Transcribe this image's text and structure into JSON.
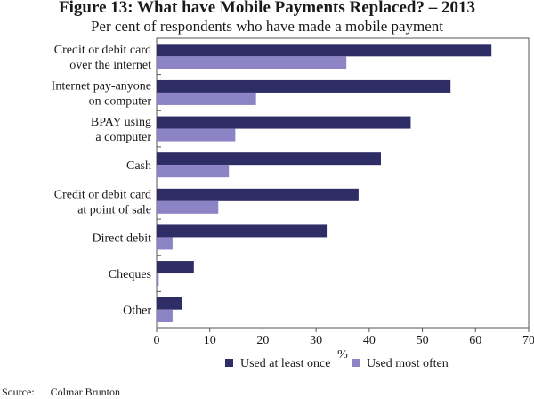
{
  "chart_data": {
    "type": "bar",
    "orientation": "horizontal",
    "title": "Figure 13: What have Mobile Payments Replaced? – 2013",
    "subtitle": "Per cent of respondents who have made a mobile payment",
    "xlabel": "%",
    "xlim": [
      0,
      70
    ],
    "xticks": [
      0,
      10,
      20,
      30,
      40,
      50,
      60,
      70
    ],
    "grid": false,
    "legend_position": "bottom",
    "categories": [
      [
        "Credit or debit card",
        "over the internet"
      ],
      [
        "Internet pay-anyone",
        "on computer"
      ],
      [
        "BPAY using",
        "a computer"
      ],
      [
        "Cash"
      ],
      [
        "Credit or debit card",
        "at point of sale"
      ],
      [
        "Direct debit"
      ],
      [
        "Cheques"
      ],
      [
        "Other"
      ]
    ],
    "series": [
      {
        "name": "Used at least once",
        "color": "#2e2d66",
        "values": [
          63,
          55.3,
          47.8,
          42.2,
          38,
          32,
          7,
          4.7
        ]
      },
      {
        "name": "Used most often",
        "color": "#8d84c6",
        "values": [
          35.7,
          18.7,
          14.8,
          13.6,
          11.6,
          3,
          0.4,
          3
        ]
      }
    ]
  },
  "source": {
    "label": "Source:",
    "text": "Colmar Brunton"
  }
}
